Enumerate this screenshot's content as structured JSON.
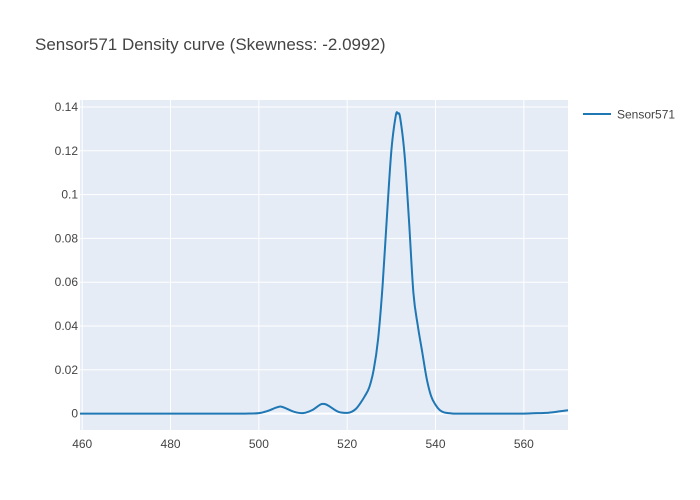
{
  "chart_data": {
    "type": "line",
    "title": "Sensor571 Density curve (Skewness: -2.0992)",
    "xlabel": "",
    "ylabel": "",
    "xlim": [
      459.5,
      570
    ],
    "ylim": [
      -0.0075,
      0.1432
    ],
    "grid": true,
    "legend": "top-right",
    "x_ticks": [
      460,
      480,
      500,
      520,
      540,
      560
    ],
    "y_ticks": [
      0,
      0.02,
      0.04,
      0.06,
      0.08,
      0.1,
      0.12,
      0.14
    ],
    "x_tick_labels": [
      "460",
      "480",
      "500",
      "520",
      "540",
      "560"
    ],
    "y_tick_labels": [
      "0",
      "0.02",
      "0.04",
      "0.06",
      "0.08",
      "0.1",
      "0.12",
      "0.14"
    ],
    "series": [
      {
        "name": "Sensor571",
        "color": "#1f77b4",
        "x": [
          459.5,
          470,
          480,
          490,
          497,
          500,
          502,
          504,
          505,
          506,
          508,
          510,
          512,
          514,
          515,
          516,
          518,
          520,
          521,
          522,
          523,
          524,
          525,
          526,
          527,
          528,
          529,
          530,
          531,
          531.5,
          532,
          533,
          534,
          535,
          536,
          537,
          538,
          539,
          540,
          541,
          542,
          543,
          544,
          545,
          550,
          555,
          560,
          563,
          565,
          567,
          568,
          570
        ],
        "y": [
          0,
          0,
          0,
          0,
          0,
          0.0002,
          0.0012,
          0.0028,
          0.0032,
          0.0025,
          0.0008,
          0.0002,
          0.0015,
          0.0042,
          0.0043,
          0.0033,
          0.0008,
          0.0003,
          0.0008,
          0.0022,
          0.0048,
          0.008,
          0.012,
          0.02,
          0.034,
          0.058,
          0.09,
          0.12,
          0.136,
          0.137,
          0.135,
          0.118,
          0.088,
          0.055,
          0.04,
          0.028,
          0.016,
          0.008,
          0.004,
          0.0015,
          0.0005,
          0.0002,
          0,
          0,
          0,
          0,
          0,
          0.0002,
          0.0003,
          0.0007,
          0.001,
          0.0015
        ]
      }
    ]
  },
  "colors": {
    "plot_background": "#e5ecf6",
    "grid": "#ffffff",
    "line": "#1f77b4"
  }
}
